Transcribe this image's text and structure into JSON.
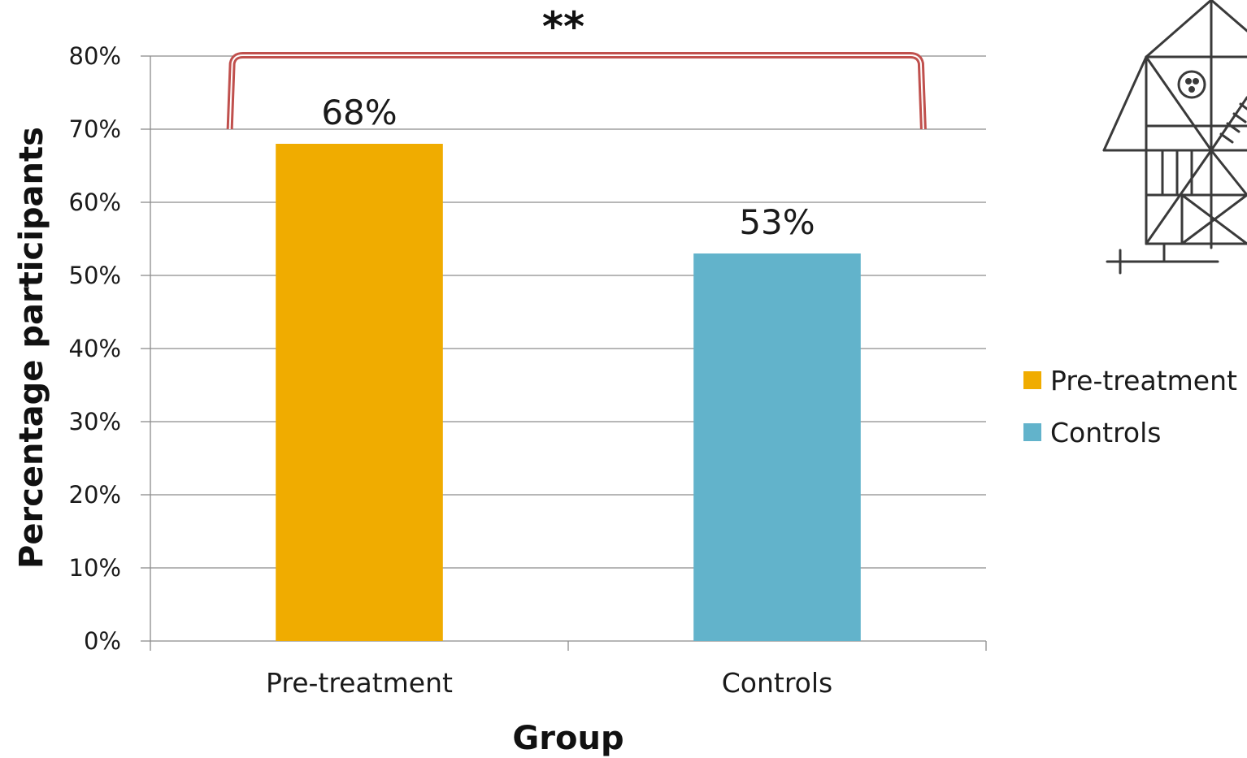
{
  "chart_data": {
    "type": "bar",
    "title": "",
    "xlabel": "Group",
    "ylabel": "Percentage participants",
    "categories": [
      "Pre-treatment",
      "Controls"
    ],
    "values": [
      68,
      53
    ],
    "value_labels": [
      "68%",
      "53%"
    ],
    "colors": [
      "#F0AC00",
      "#62B3CB"
    ],
    "ylim": [
      0,
      80
    ],
    "yticks": [
      0,
      10,
      20,
      30,
      40,
      50,
      60,
      70,
      80
    ],
    "ytick_labels": [
      "0%",
      "10%",
      "20%",
      "30%",
      "40%",
      "50%",
      "60%",
      "70%",
      "80%"
    ],
    "grid": true,
    "legend": {
      "placement": "right",
      "entries": [
        {
          "label": "Pre-treatment",
          "color": "#F0AC00"
        },
        {
          "label": "Controls",
          "color": "#62B3CB"
        }
      ]
    },
    "annotation": {
      "text": "**",
      "type": "significance-bracket",
      "between": [
        "Pre-treatment",
        "Controls"
      ],
      "color": "#C0504D"
    }
  },
  "figure_icon": "complex-figure-drawing-icon"
}
